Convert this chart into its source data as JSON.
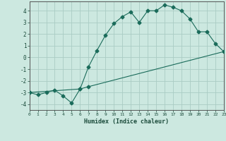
{
  "xlabel": "Humidex (Indice chaleur)",
  "background_color": "#cce8e0",
  "grid_color": "#aaccc4",
  "line_color": "#1a6b5a",
  "line1_x": [
    0,
    1,
    2,
    3,
    4,
    5,
    6,
    7,
    8,
    9,
    10,
    11,
    12,
    13,
    14,
    15,
    16,
    17,
    18,
    19,
    20,
    21,
    22,
    23
  ],
  "line1_y": [
    -3.0,
    -3.2,
    -3.0,
    -2.8,
    -3.3,
    -3.9,
    -2.7,
    -0.8,
    0.6,
    1.9,
    2.9,
    3.5,
    3.9,
    3.0,
    4.0,
    4.0,
    4.5,
    4.3,
    4.0,
    3.3,
    2.2,
    2.2,
    1.2,
    0.5
  ],
  "line2_x": [
    0,
    6,
    7,
    23
  ],
  "line2_y": [
    -3.0,
    -2.7,
    -2.5,
    0.5
  ],
  "xlim": [
    0,
    23
  ],
  "ylim": [
    -4.5,
    4.8
  ],
  "yticks": [
    -4,
    -3,
    -2,
    -1,
    0,
    1,
    2,
    3,
    4
  ],
  "xticks": [
    0,
    1,
    2,
    3,
    4,
    5,
    6,
    7,
    8,
    9,
    10,
    11,
    12,
    13,
    14,
    15,
    16,
    17,
    18,
    19,
    20,
    21,
    22,
    23
  ]
}
